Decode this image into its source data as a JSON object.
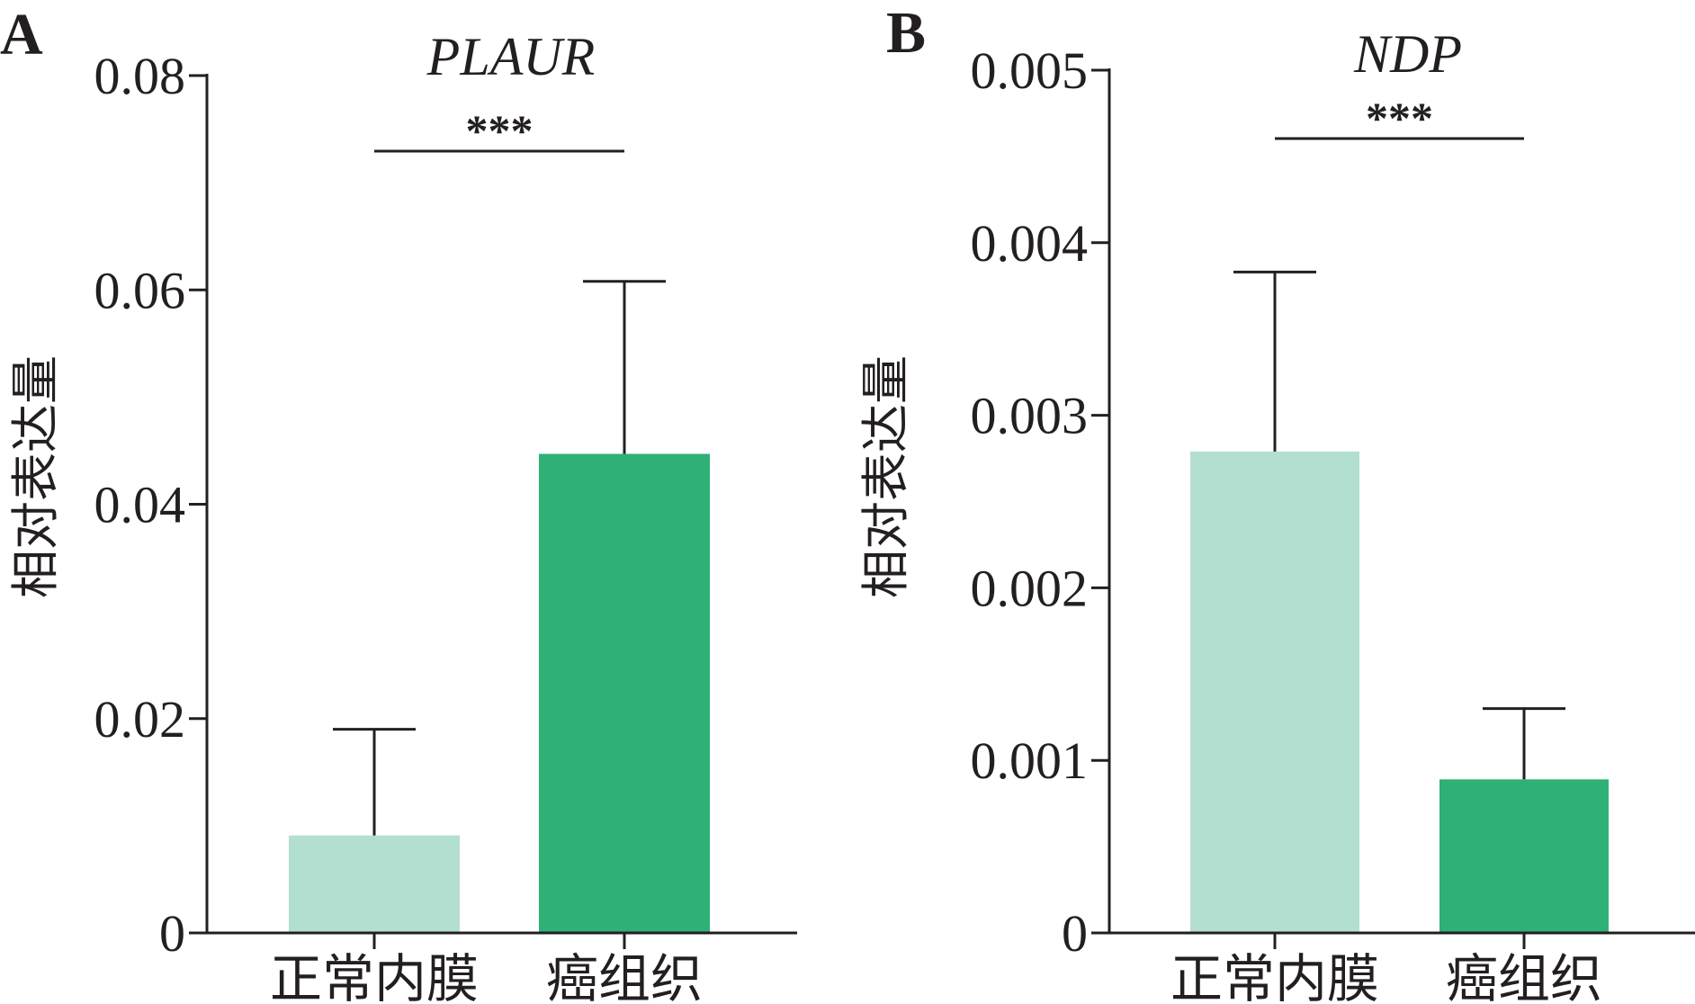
{
  "chart_data": [
    {
      "panel_label": "A",
      "type": "bar",
      "title": "PLAUR",
      "ylabel": "相对表达量",
      "xlabel": "",
      "categories": [
        "正常内膜",
        "癌组织"
      ],
      "values": [
        0.0091,
        0.0447
      ],
      "error_upper": [
        0.019,
        0.0608
      ],
      "ylim": [
        0,
        0.08
      ],
      "yticks": [
        0,
        0.02,
        0.04,
        0.06,
        0.08
      ],
      "ytick_labels": [
        "0",
        "0.02",
        "0.04",
        "0.06",
        "0.08"
      ],
      "significance": {
        "pair": [
          0,
          1
        ],
        "label": "***",
        "y": 0.0705
      },
      "colors": [
        "#b3dfd1",
        "#2fb076"
      ],
      "grid": false,
      "legend": "none"
    },
    {
      "panel_label": "B",
      "type": "bar",
      "title": "NDP",
      "ylabel": "相对表达量",
      "xlabel": "",
      "categories": [
        "正常内膜",
        "癌组织"
      ],
      "values": [
        0.00279,
        0.00089
      ],
      "error_upper": [
        0.00383,
        0.0013
      ],
      "ylim": [
        0,
        0.005
      ],
      "yticks": [
        0,
        0.001,
        0.002,
        0.003,
        0.004,
        0.005
      ],
      "ytick_labels": [
        "0",
        "0.001",
        "0.002",
        "0.003",
        "0.004",
        "0.005"
      ],
      "significance": {
        "pair": [
          0,
          1
        ],
        "label": "***",
        "y": 0.00442
      },
      "colors": [
        "#b3dfd1",
        "#2fb076"
      ],
      "grid": false,
      "legend": "none"
    }
  ]
}
